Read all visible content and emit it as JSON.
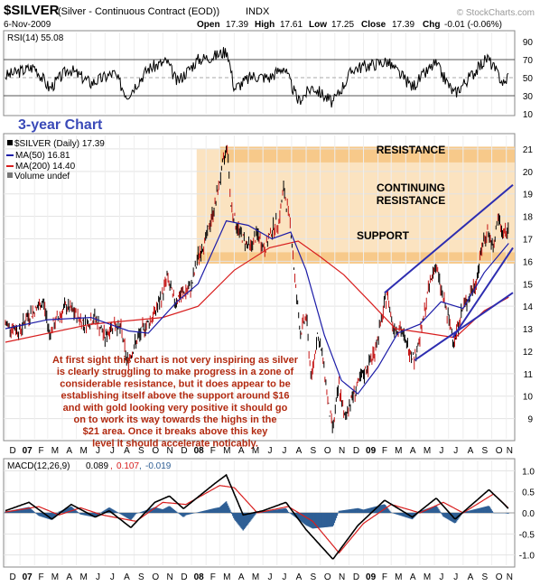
{
  "header": {
    "symbol": "$SILVER",
    "description": "(Silver - Continuous Contract (EOD))",
    "exchange": "INDX",
    "copyright": "© StockCharts.com",
    "date": "6-Nov-2009",
    "open_label": "Open",
    "open": "17.39",
    "high_label": "High",
    "high": "17.61",
    "low_label": "Low",
    "low": "17.25",
    "close_label": "Close",
    "close": "17.39",
    "chg_label": "Chg",
    "chg": "-0.01 (-0.06%)"
  },
  "rsi_panel": {
    "label": "RSI(14) 55.08",
    "tick_labels": [
      "90",
      "70",
      "50",
      "30",
      "10"
    ]
  },
  "price_panel": {
    "chart_title": "3-year Chart",
    "legend": [
      {
        "text": "$SILVER (Daily) 17.39",
        "color": "#000000"
      },
      {
        "text": "MA(50) 16.81",
        "color": "#1c1ca8"
      },
      {
        "text": "MA(200) 14.40",
        "color": "#d81e1e"
      },
      {
        "text": "Volume undef",
        "color": "#555555"
      }
    ],
    "zones": [
      {
        "label": "RESISTANCE"
      },
      {
        "label": "CONTINUING\nRESISTANCE"
      },
      {
        "label": "SUPPORT"
      }
    ],
    "annotation": "At first sight this chart is not very inspiring as silver is clearly struggling to make progress in a zone of considerable resistance, but it does appear to be establishing itself above the support around $16 and with gold looking very positive it should go on to work its way towards the highs in the $21 area. Once it breaks above this key level it should accelerate noticably.",
    "annotation_lines": [
      "At first sight this chart is not very inspiring as silver",
      "is clearly struggling to make progress in a zone of",
      "considerable resistance, but it does appear to be",
      "establishing itself above the support around $16",
      "and with gold looking very positive it should go",
      "on to work its way towards the highs in the",
      "$21 area. Once it breaks above this key",
      "level it should accelerate noticably."
    ],
    "annotation_color": "#b22a10"
  },
  "macd_panel": {
    "label_prefix": "MACD(12,26,9)",
    "macd": "0.089",
    "signal": "0.107",
    "histogram": "-0.019",
    "tick_labels": [
      "1.0",
      "0.5",
      "0.0",
      "-0.5",
      "-1.0"
    ]
  },
  "time_axis": {
    "labels": [
      "D",
      "07",
      "F",
      "M",
      "A",
      "M",
      "J",
      "J",
      "A",
      "S",
      "O",
      "N",
      "D",
      "08",
      "F",
      "M",
      "A",
      "M",
      "J",
      "J",
      "A",
      "S",
      "O",
      "N",
      "D",
      "09",
      "F",
      "M",
      "A",
      "M",
      "J",
      "J",
      "A",
      "S",
      "O",
      "N"
    ]
  },
  "colors": {
    "price": "#000000",
    "ma50": "#1c1ca8",
    "ma200": "#d81e1e",
    "zone_fill": "#fbe3c0",
    "zone_band": "#f7c98a",
    "trendline": "#2d2db0",
    "title": "#3a4ab8",
    "macd_hist": "#2f5f95"
  },
  "chart_data": {
    "type": "line",
    "x_range": [
      "2006-12",
      "2009-11"
    ],
    "price_axis": {
      "ylim": [
        8.1,
        21.6
      ],
      "ticks": [
        9,
        10,
        11,
        12,
        13,
        14,
        15,
        16,
        17,
        18,
        19,
        20,
        21
      ]
    },
    "price_series": {
      "name": "$SILVER (Daily)",
      "points": [
        [
          "2006-12-01",
          13.2
        ],
        [
          "2007-01-01",
          12.9
        ],
        [
          "2007-01-15",
          13.5
        ],
        [
          "2007-02-01",
          13.8
        ],
        [
          "2007-02-20",
          14.2
        ],
        [
          "2007-03-05",
          12.8
        ],
        [
          "2007-03-20",
          13.4
        ],
        [
          "2007-04-10",
          14.0
        ],
        [
          "2007-05-01",
          13.6
        ],
        [
          "2007-05-20",
          13.2
        ],
        [
          "2007-06-10",
          13.5
        ],
        [
          "2007-07-01",
          12.6
        ],
        [
          "2007-07-20",
          13.3
        ],
        [
          "2007-08-05",
          12.9
        ],
        [
          "2007-08-17",
          11.5
        ],
        [
          "2007-09-01",
          12.2
        ],
        [
          "2007-09-20",
          13.0
        ],
        [
          "2007-10-10",
          13.5
        ],
        [
          "2007-10-30",
          14.4
        ],
        [
          "2007-11-10",
          15.3
        ],
        [
          "2007-11-25",
          14.2
        ],
        [
          "2007-12-10",
          14.5
        ],
        [
          "2007-12-31",
          14.8
        ],
        [
          "2008-01-15",
          16.2
        ],
        [
          "2008-02-01",
          17.0
        ],
        [
          "2008-02-20",
          18.5
        ],
        [
          "2008-03-05",
          20.0
        ],
        [
          "2008-03-17",
          21.2
        ],
        [
          "2008-03-25",
          18.5
        ],
        [
          "2008-04-05",
          17.6
        ],
        [
          "2008-04-20",
          17.0
        ],
        [
          "2008-05-05",
          16.6
        ],
        [
          "2008-05-20",
          17.2
        ],
        [
          "2008-06-05",
          16.5
        ],
        [
          "2008-06-20",
          17.4
        ],
        [
          "2008-07-05",
          17.8
        ],
        [
          "2008-07-15",
          19.2
        ],
        [
          "2008-07-30",
          17.6
        ],
        [
          "2008-08-08",
          15.2
        ],
        [
          "2008-08-20",
          12.8
        ],
        [
          "2008-09-01",
          13.6
        ],
        [
          "2008-09-12",
          10.7
        ],
        [
          "2008-09-25",
          12.8
        ],
        [
          "2008-10-08",
          11.5
        ],
        [
          "2008-10-20",
          9.3
        ],
        [
          "2008-10-28",
          8.6
        ],
        [
          "2008-11-10",
          10.5
        ],
        [
          "2008-11-21",
          9.0
        ],
        [
          "2008-12-05",
          9.8
        ],
        [
          "2008-12-22",
          10.6
        ],
        [
          "2009-01-10",
          11.3
        ],
        [
          "2009-01-25",
          12.0
        ],
        [
          "2009-02-10",
          13.5
        ],
        [
          "2009-02-20",
          14.6
        ],
        [
          "2009-03-05",
          13.1
        ],
        [
          "2009-03-20",
          13.0
        ],
        [
          "2009-04-05",
          12.2
        ],
        [
          "2009-04-20",
          11.7
        ],
        [
          "2009-05-05",
          13.0
        ],
        [
          "2009-05-20",
          14.8
        ],
        [
          "2009-06-03",
          15.9
        ],
        [
          "2009-06-18",
          14.5
        ],
        [
          "2009-07-03",
          13.2
        ],
        [
          "2009-07-13",
          12.5
        ],
        [
          "2009-07-30",
          13.8
        ],
        [
          "2009-08-15",
          14.5
        ],
        [
          "2009-08-28",
          15.0
        ],
        [
          "2009-09-10",
          16.6
        ],
        [
          "2009-09-22",
          17.4
        ],
        [
          "2009-10-05",
          16.4
        ],
        [
          "2009-10-13",
          18.0
        ],
        [
          "2009-10-25",
          17.2
        ],
        [
          "2009-11-06",
          17.4
        ]
      ]
    },
    "ma50_series": {
      "name": "MA(50)",
      "points": [
        [
          "2006-12-01",
          13.0
        ],
        [
          "2007-03-01",
          13.4
        ],
        [
          "2007-06-01",
          13.5
        ],
        [
          "2007-08-20",
          12.9
        ],
        [
          "2007-10-01",
          12.8
        ],
        [
          "2007-12-01",
          14.2
        ],
        [
          "2008-01-15",
          15.0
        ],
        [
          "2008-03-15",
          17.8
        ],
        [
          "2008-05-01",
          17.6
        ],
        [
          "2008-06-20",
          17.0
        ],
        [
          "2008-07-30",
          17.3
        ],
        [
          "2008-09-01",
          15.6
        ],
        [
          "2008-10-10",
          12.7
        ],
        [
          "2008-11-15",
          10.7
        ],
        [
          "2008-12-20",
          10.1
        ],
        [
          "2009-02-01",
          11.3
        ],
        [
          "2009-03-15",
          12.8
        ],
        [
          "2009-05-01",
          13.2
        ],
        [
          "2009-06-15",
          14.2
        ],
        [
          "2009-08-01",
          13.9
        ],
        [
          "2009-09-15",
          15.5
        ],
        [
          "2009-11-06",
          16.8
        ]
      ]
    },
    "ma200_series": {
      "name": "MA(200)",
      "points": [
        [
          "2006-12-01",
          12.4
        ],
        [
          "2007-06-01",
          13.2
        ],
        [
          "2007-11-01",
          13.5
        ],
        [
          "2008-01-15",
          14.0
        ],
        [
          "2008-04-01",
          15.6
        ],
        [
          "2008-06-15",
          16.6
        ],
        [
          "2008-08-15",
          16.9
        ],
        [
          "2008-10-01",
          16.2
        ],
        [
          "2008-11-20",
          15.4
        ],
        [
          "2009-01-10",
          14.3
        ],
        [
          "2009-03-10",
          13.0
        ],
        [
          "2009-05-15",
          12.8
        ],
        [
          "2009-07-15",
          12.6
        ],
        [
          "2009-09-15",
          13.8
        ],
        [
          "2009-11-06",
          14.4
        ]
      ]
    },
    "resistance_zone": [
      15.9,
      21.0
    ],
    "resistance_band": [
      20.4,
      21.1
    ],
    "support_band": [
      15.9,
      16.4
    ],
    "trendlines": [
      {
        "from": [
          "2009-02-15",
          14.6
        ],
        "to": [
          "2009-11-20",
          19.4
        ]
      },
      {
        "from": [
          "2009-07-10",
          12.6
        ],
        "to": [
          "2009-11-20",
          16.6
        ]
      },
      {
        "from": [
          "2009-04-20",
          11.6
        ],
        "to": [
          "2009-11-20",
          14.6
        ]
      }
    ],
    "rsi_series": {
      "name": "RSI(14)",
      "ylim": [
        10,
        100
      ],
      "points": [
        [
          "2006-12-01",
          52
        ],
        [
          "2007-02-01",
          62
        ],
        [
          "2007-03-05",
          38
        ],
        [
          "2007-04-15",
          60
        ],
        [
          "2007-06-01",
          44
        ],
        [
          "2007-07-20",
          55
        ],
        [
          "2007-08-17",
          30
        ],
        [
          "2007-10-01",
          60
        ],
        [
          "2007-11-10",
          68
        ],
        [
          "2007-12-01",
          45
        ],
        [
          "2008-01-15",
          70
        ],
        [
          "2008-02-20",
          74
        ],
        [
          "2008-03-17",
          80
        ],
        [
          "2008-04-01",
          38
        ],
        [
          "2008-05-10",
          52
        ],
        [
          "2008-06-15",
          50
        ],
        [
          "2008-07-15",
          62
        ],
        [
          "2008-08-15",
          24
        ],
        [
          "2008-09-15",
          40
        ],
        [
          "2008-10-28",
          22
        ],
        [
          "2008-12-10",
          60
        ],
        [
          "2009-02-20",
          68
        ],
        [
          "2009-04-15",
          40
        ],
        [
          "2009-06-03",
          66
        ],
        [
          "2009-07-13",
          32
        ],
        [
          "2009-09-22",
          72
        ],
        [
          "2009-10-28",
          42
        ],
        [
          "2009-11-06",
          55
        ]
      ]
    },
    "macd_series": {
      "name": "MACD(12,26,9)",
      "ylim": [
        -1.2,
        1.2
      ],
      "points": [
        [
          "2006-12-01",
          0.05
        ],
        [
          "2007-01-20",
          0.25
        ],
        [
          "2007-03-10",
          -0.15
        ],
        [
          "2007-04-20",
          0.2
        ],
        [
          "2007-06-10",
          -0.1
        ],
        [
          "2007-07-10",
          0.05
        ],
        [
          "2007-08-25",
          -0.35
        ],
        [
          "2007-10-15",
          0.25
        ],
        [
          "2007-11-15",
          0.4
        ],
        [
          "2007-12-15",
          0.1
        ],
        [
          "2008-02-20",
          0.7
        ],
        [
          "2008-03-15",
          0.9
        ],
        [
          "2008-04-20",
          -0.05
        ],
        [
          "2008-06-01",
          0.05
        ],
        [
          "2008-07-20",
          0.25
        ],
        [
          "2008-09-01",
          -0.4
        ],
        [
          "2008-10-28",
          -1.1
        ],
        [
          "2008-12-20",
          -0.3
        ],
        [
          "2009-02-15",
          0.3
        ],
        [
          "2009-04-15",
          -0.1
        ],
        [
          "2009-06-05",
          0.35
        ],
        [
          "2009-07-15",
          -0.15
        ],
        [
          "2009-09-25",
          0.55
        ],
        [
          "2009-10-28",
          0.2
        ],
        [
          "2009-11-06",
          0.09
        ]
      ]
    },
    "signal_series": {
      "name": "Signal",
      "points": [
        [
          "2006-12-01",
          0.02
        ],
        [
          "2007-02-10",
          0.15
        ],
        [
          "2007-03-25",
          -0.05
        ],
        [
          "2007-05-10",
          0.12
        ],
        [
          "2007-06-25",
          -0.05
        ],
        [
          "2007-09-05",
          -0.2
        ],
        [
          "2007-11-01",
          0.25
        ],
        [
          "2007-12-20",
          0.2
        ],
        [
          "2008-03-01",
          0.65
        ],
        [
          "2008-04-01",
          0.6
        ],
        [
          "2008-05-20",
          0.0
        ],
        [
          "2008-07-25",
          0.15
        ],
        [
          "2008-09-15",
          -0.2
        ],
        [
          "2008-11-10",
          -0.95
        ],
        [
          "2009-01-01",
          -0.25
        ],
        [
          "2009-03-01",
          0.2
        ],
        [
          "2009-05-01",
          0.0
        ],
        [
          "2009-06-20",
          0.25
        ],
        [
          "2009-08-01",
          0.0
        ],
        [
          "2009-10-05",
          0.45
        ],
        [
          "2009-11-06",
          0.11
        ]
      ]
    }
  }
}
